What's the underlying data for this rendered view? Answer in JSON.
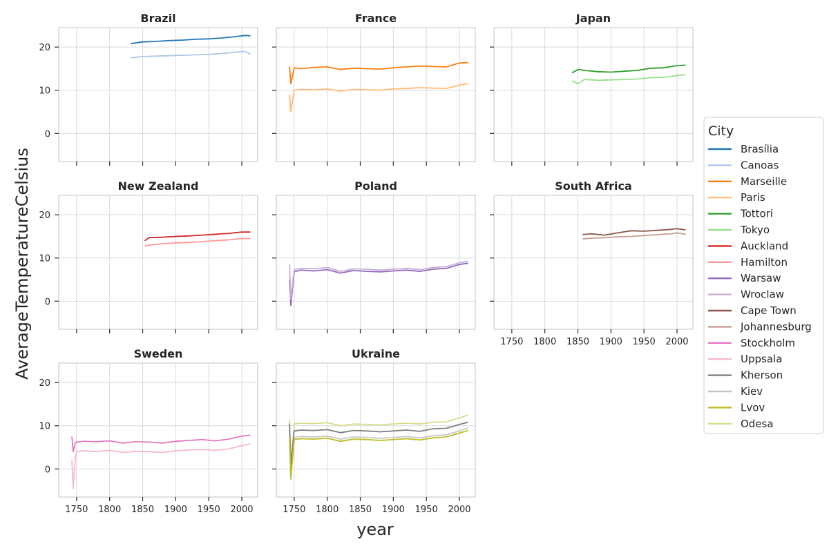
{
  "chart_data": {
    "type": "line",
    "xlabel": "year",
    "ylabel": "AverageTemperatureCelsius",
    "xlim": [
      1723,
      2024
    ],
    "ylim": [
      -6.5,
      24.5
    ],
    "x_ticks": [
      1750,
      1800,
      1850,
      1900,
      1950,
      2000
    ],
    "y_ticks": [
      0,
      10,
      20
    ],
    "grid": true,
    "legend": {
      "title": "City",
      "position": "right",
      "entries": [
        {
          "name": "Brasília",
          "color": "#1f77b4"
        },
        {
          "name": "Canoas",
          "color": "#aec7e8"
        },
        {
          "name": "Marseille",
          "color": "#ff7f0e"
        },
        {
          "name": "Paris",
          "color": "#ffbb78"
        },
        {
          "name": "Tottori",
          "color": "#2ca02c"
        },
        {
          "name": "Tokyo",
          "color": "#98df8a"
        },
        {
          "name": "Auckland",
          "color": "#d62728"
        },
        {
          "name": "Hamilton",
          "color": "#ff9896"
        },
        {
          "name": "Warsaw",
          "color": "#9467bd"
        },
        {
          "name": "Wroclaw",
          "color": "#c5b0d5"
        },
        {
          "name": "Cape Town",
          "color": "#8c564b"
        },
        {
          "name": "Johannesburg",
          "color": "#c49c94"
        },
        {
          "name": "Stockholm",
          "color": "#e377c2"
        },
        {
          "name": "Uppsala",
          "color": "#f7b6d2"
        },
        {
          "name": "Kherson",
          "color": "#7f7f7f"
        },
        {
          "name": "Kiev",
          "color": "#c7c7c7"
        },
        {
          "name": "Lvov",
          "color": "#bcbd22"
        },
        {
          "name": "Odesa",
          "color": "#dbdb8d"
        }
      ]
    },
    "panels": [
      {
        "title": "Brazil",
        "series": [
          {
            "name": "Canoas",
            "color": "#aec7e8",
            "x": [
              1832,
              1850,
              1870,
              1890,
              1910,
              1930,
              1950,
              1970,
              1990,
              2005,
              2013
            ],
            "y": [
              17.5,
              17.8,
              17.9,
              18.0,
              18.1,
              18.2,
              18.3,
              18.5,
              18.8,
              19.0,
              18.3
            ]
          },
          {
            "name": "Brasília",
            "color": "#1f77b4",
            "x": [
              1832,
              1850,
              1870,
              1890,
              1910,
              1930,
              1950,
              1970,
              1990,
              2005,
              2013
            ],
            "y": [
              20.8,
              21.2,
              21.3,
              21.5,
              21.6,
              21.8,
              21.9,
              22.1,
              22.4,
              22.7,
              22.6
            ]
          }
        ]
      },
      {
        "title": "France",
        "series": [
          {
            "name": "Paris",
            "color": "#ffbb78",
            "x": [
              1743,
              1745,
              1750,
              1760,
              1780,
              1800,
              1820,
              1840,
              1860,
              1880,
              1900,
              1920,
              1940,
              1960,
              1980,
              2000,
              2013
            ],
            "y": [
              9.0,
              5.0,
              10.0,
              10.2,
              10.1,
              10.3,
              9.8,
              10.2,
              10.1,
              10.0,
              10.3,
              10.4,
              10.6,
              10.5,
              10.4,
              11.2,
              11.5
            ]
          },
          {
            "name": "Marseille",
            "color": "#ff7f0e",
            "x": [
              1743,
              1745,
              1750,
              1760,
              1780,
              1800,
              1820,
              1840,
              1860,
              1880,
              1900,
              1920,
              1940,
              1960,
              1980,
              2000,
              2013
            ],
            "y": [
              15.5,
              11.5,
              15.2,
              15.0,
              15.3,
              15.4,
              14.8,
              15.1,
              15.0,
              14.9,
              15.2,
              15.4,
              15.6,
              15.5,
              15.4,
              16.3,
              16.4
            ]
          }
        ]
      },
      {
        "title": "Japan",
        "series": [
          {
            "name": "Tokyo",
            "color": "#98df8a",
            "x": [
              1841,
              1850,
              1860,
              1880,
              1900,
              1920,
              1940,
              1960,
              1980,
              2000,
              2013
            ],
            "y": [
              12.2,
              11.5,
              12.5,
              12.3,
              12.4,
              12.5,
              12.6,
              12.9,
              13.0,
              13.4,
              13.6
            ]
          },
          {
            "name": "Tottori",
            "color": "#2ca02c",
            "x": [
              1841,
              1850,
              1860,
              1880,
              1900,
              1920,
              1940,
              1960,
              1980,
              2000,
              2013
            ],
            "y": [
              14.0,
              14.8,
              14.6,
              14.3,
              14.2,
              14.4,
              14.6,
              15.1,
              15.2,
              15.7,
              15.8
            ]
          }
        ]
      },
      {
        "title": "New Zealand",
        "series": [
          {
            "name": "Hamilton",
            "color": "#ff9896",
            "x": [
              1853,
              1860,
              1880,
              1900,
              1920,
              1940,
              1960,
              1980,
              2000,
              2013
            ],
            "y": [
              12.8,
              13.0,
              13.3,
              13.5,
              13.6,
              13.8,
              14.0,
              14.2,
              14.5,
              14.5
            ]
          },
          {
            "name": "Auckland",
            "color": "#d62728",
            "x": [
              1853,
              1860,
              1880,
              1900,
              1920,
              1940,
              1960,
              1980,
              2000,
              2013
            ],
            "y": [
              14.0,
              14.7,
              14.8,
              15.0,
              15.1,
              15.3,
              15.5,
              15.7,
              16.0,
              16.0
            ]
          }
        ]
      },
      {
        "title": "Poland",
        "series": [
          {
            "name": "Warsaw",
            "color": "#9467bd",
            "x": [
              1743,
              1745,
              1750,
              1760,
              1780,
              1800,
              1820,
              1840,
              1860,
              1880,
              1900,
              1920,
              1940,
              1960,
              1980,
              2000,
              2013
            ],
            "y": [
              5.0,
              -1.0,
              6.8,
              7.2,
              7.0,
              7.3,
              6.5,
              7.1,
              6.9,
              6.8,
              7.0,
              7.2,
              6.9,
              7.4,
              7.6,
              8.5,
              8.8
            ]
          },
          {
            "name": "Wroclaw",
            "color": "#c5b0d5",
            "x": [
              1743,
              1745,
              1750,
              1760,
              1780,
              1800,
              1820,
              1840,
              1860,
              1880,
              1900,
              1920,
              1940,
              1960,
              1980,
              2000,
              2013
            ],
            "y": [
              8.5,
              0.5,
              7.3,
              7.6,
              7.5,
              7.8,
              6.9,
              7.5,
              7.4,
              7.2,
              7.4,
              7.6,
              7.3,
              7.8,
              8.0,
              8.9,
              9.2
            ]
          }
        ]
      },
      {
        "title": "South Africa",
        "series": [
          {
            "name": "Johannesburg",
            "color": "#c49c94",
            "x": [
              1857,
              1870,
              1890,
              1910,
              1930,
              1950,
              1970,
              1990,
              2000,
              2013
            ],
            "y": [
              14.4,
              14.6,
              14.7,
              14.9,
              15.0,
              15.2,
              15.4,
              15.6,
              15.8,
              15.5
            ]
          },
          {
            "name": "Cape Town",
            "color": "#8c564b",
            "x": [
              1857,
              1870,
              1890,
              1910,
              1930,
              1950,
              1970,
              1990,
              2000,
              2013
            ],
            "y": [
              15.4,
              15.6,
              15.3,
              15.8,
              16.3,
              16.2,
              16.4,
              16.6,
              16.8,
              16.5
            ]
          }
        ]
      },
      {
        "title": "Sweden",
        "series": [
          {
            "name": "Uppsala",
            "color": "#f7b6d2",
            "x": [
              1743,
              1745,
              1748,
              1750,
              1760,
              1780,
              1800,
              1820,
              1840,
              1860,
              1880,
              1900,
              1920,
              1940,
              1960,
              1980,
              2000,
              2013
            ],
            "y": [
              2.0,
              -4.5,
              2.5,
              4.0,
              4.2,
              4.0,
              4.3,
              3.8,
              4.1,
              4.0,
              3.8,
              4.2,
              4.4,
              4.5,
              4.3,
              4.6,
              5.4,
              5.8
            ]
          },
          {
            "name": "Stockholm",
            "color": "#e377c2",
            "x": [
              1743,
              1745,
              1748,
              1750,
              1760,
              1780,
              1800,
              1820,
              1840,
              1860,
              1880,
              1900,
              1920,
              1940,
              1960,
              1980,
              2000,
              2013
            ],
            "y": [
              7.5,
              4.0,
              6.0,
              6.2,
              6.4,
              6.3,
              6.5,
              6.0,
              6.3,
              6.2,
              6.0,
              6.4,
              6.6,
              6.8,
              6.5,
              6.9,
              7.6,
              7.8
            ]
          }
        ]
      },
      {
        "title": "Ukraine",
        "series": [
          {
            "name": "Odesa",
            "color": "#dbdb8d",
            "x": [
              1743,
              1745,
              1750,
              1760,
              1780,
              1800,
              1820,
              1840,
              1860,
              1880,
              1900,
              1920,
              1940,
              1960,
              1980,
              2000,
              2013
            ],
            "y": [
              11.5,
              -1.0,
              10.4,
              10.6,
              10.5,
              10.7,
              10.0,
              10.4,
              10.3,
              10.2,
              10.4,
              10.6,
              10.4,
              10.8,
              10.9,
              11.8,
              12.5
            ]
          },
          {
            "name": "Kiev",
            "color": "#c7c7c7",
            "x": [
              1743,
              1745,
              1750,
              1760,
              1780,
              1800,
              1820,
              1840,
              1860,
              1880,
              1900,
              1920,
              1940,
              1960,
              1980,
              2000,
              2013
            ],
            "y": [
              9.0,
              -2.5,
              7.3,
              7.5,
              7.4,
              7.6,
              6.9,
              7.4,
              7.3,
              7.1,
              7.3,
              7.5,
              7.2,
              7.7,
              7.9,
              8.8,
              9.5
            ]
          },
          {
            "name": "Kherson",
            "color": "#7f7f7f",
            "x": [
              1743,
              1745,
              1750,
              1760,
              1780,
              1800,
              1820,
              1840,
              1860,
              1880,
              1900,
              1920,
              1940,
              1960,
              1980,
              2000,
              2013
            ],
            "y": [
              10.5,
              1.0,
              8.8,
              9.0,
              8.9,
              9.1,
              8.4,
              8.9,
              8.8,
              8.6,
              8.8,
              9.0,
              8.7,
              9.3,
              9.4,
              10.3,
              10.8
            ]
          },
          {
            "name": "Lvov",
            "color": "#bcbd22",
            "x": [
              1743,
              1745,
              1750,
              1760,
              1780,
              1800,
              1820,
              1840,
              1860,
              1880,
              1900,
              1920,
              1940,
              1960,
              1980,
              2000,
              2013
            ],
            "y": [
              7.5,
              -2.0,
              6.8,
              7.0,
              6.9,
              7.1,
              6.4,
              6.9,
              6.8,
              6.6,
              6.8,
              7.0,
              6.7,
              7.2,
              7.4,
              8.3,
              8.9
            ]
          }
        ]
      }
    ]
  }
}
